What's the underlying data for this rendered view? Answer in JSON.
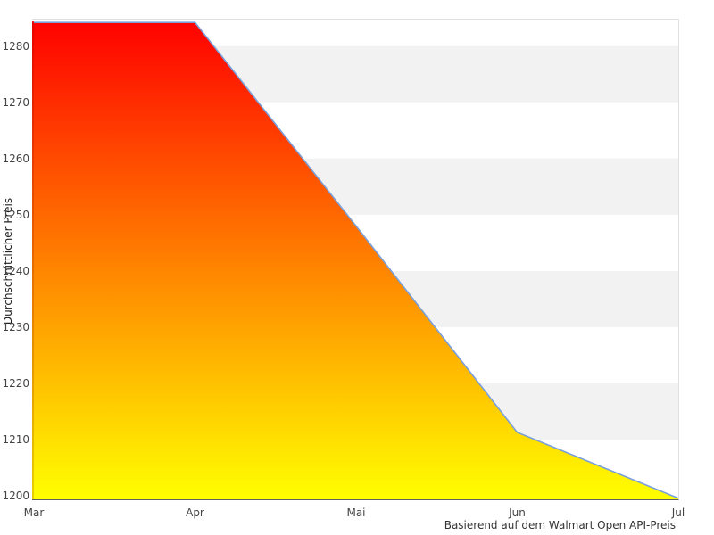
{
  "chart_data": {
    "type": "area",
    "title": "",
    "x_categories": [
      "Mar",
      "Apr",
      "Mai",
      "Jun",
      "Jul"
    ],
    "series": [
      {
        "name": "Durchschnittlicher Preis",
        "values": [
          1284.2,
          1284.2,
          1248,
          1211.3,
          1199.6
        ]
      }
    ],
    "ylabel": "Durchschnittlicher Preis",
    "caption": "Basierend auf dem Walmart Open API-Preis",
    "yticks": [
      1200,
      1210,
      1220,
      1230,
      1240,
      1250,
      1260,
      1270,
      1280
    ],
    "ylim": [
      1199.4,
      1284.7
    ],
    "grid": "striped-horizontal-bands",
    "legend": "none",
    "colors": {
      "area_gradient_top": "#ff0000",
      "area_gradient_bottom": "#ffff00",
      "area_edge_gradient_top": "#e60000",
      "area_edge_gradient_bottom": "#e6d200",
      "line": "#7a9fdb",
      "stripe": "#f2f2f2",
      "plot_border": "#e0e0e0",
      "baseline": "#606060",
      "tick_text": "#444444",
      "caption_text": "#333333",
      "axis_title_text": "#222222",
      "background": "#ffffff"
    }
  }
}
